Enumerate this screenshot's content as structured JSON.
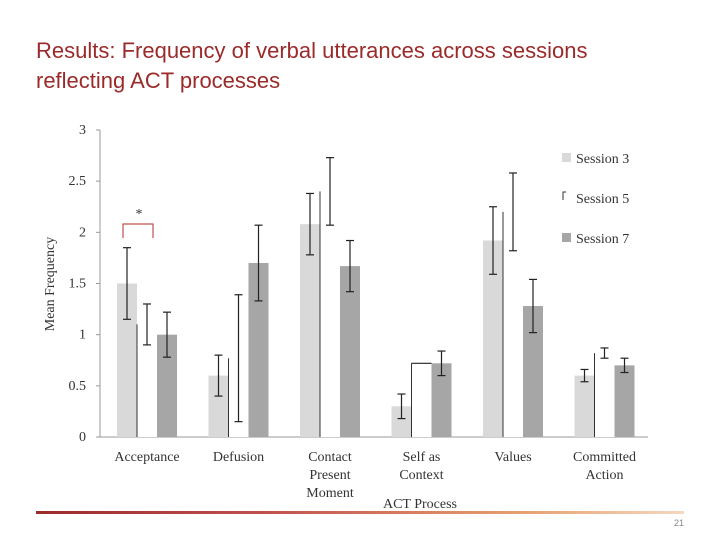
{
  "slide": {
    "title_line1": "Results:   Frequency of verbal utterances across sessions",
    "title_line2": "reflecting ACT processes",
    "page_number": "21"
  },
  "chart_data": {
    "type": "bar",
    "xlabel": "ACT Process",
    "ylabel": "Mean Frequency",
    "ylim": [
      0,
      3
    ],
    "yticks": [
      "0",
      "0.5",
      "1",
      "1.5",
      "2",
      "2.5",
      "3"
    ],
    "categories": [
      [
        "Acceptance"
      ],
      [
        "Defusion"
      ],
      [
        "Contact",
        "Present",
        "Moment"
      ],
      [
        "Self as",
        "Context"
      ],
      [
        "Values"
      ],
      [
        "Committed",
        "Action"
      ]
    ],
    "series": [
      {
        "name": "Session 3",
        "color": "#d9d9d9",
        "values": [
          1.5,
          0.6,
          2.08,
          0.3,
          1.92,
          0.6
        ],
        "error": [
          0.35,
          0.2,
          0.3,
          0.12,
          0.33,
          0.06
        ]
      },
      {
        "name": "Session 5",
        "color": "#ffffff",
        "values": [
          1.1,
          0.77,
          2.4,
          0.72,
          2.2,
          0.82
        ],
        "error": [
          0.2,
          0.62,
          0.33,
          0.0,
          0.38,
          0.05
        ]
      },
      {
        "name": "Session 7",
        "color": "#a6a6a6",
        "values": [
          1.0,
          1.7,
          1.67,
          0.72,
          1.28,
          0.7
        ],
        "error": [
          0.22,
          0.37,
          0.25,
          0.12,
          0.26,
          0.07
        ]
      }
    ],
    "annotation": "*",
    "legend_position": "right",
    "grid": false
  }
}
